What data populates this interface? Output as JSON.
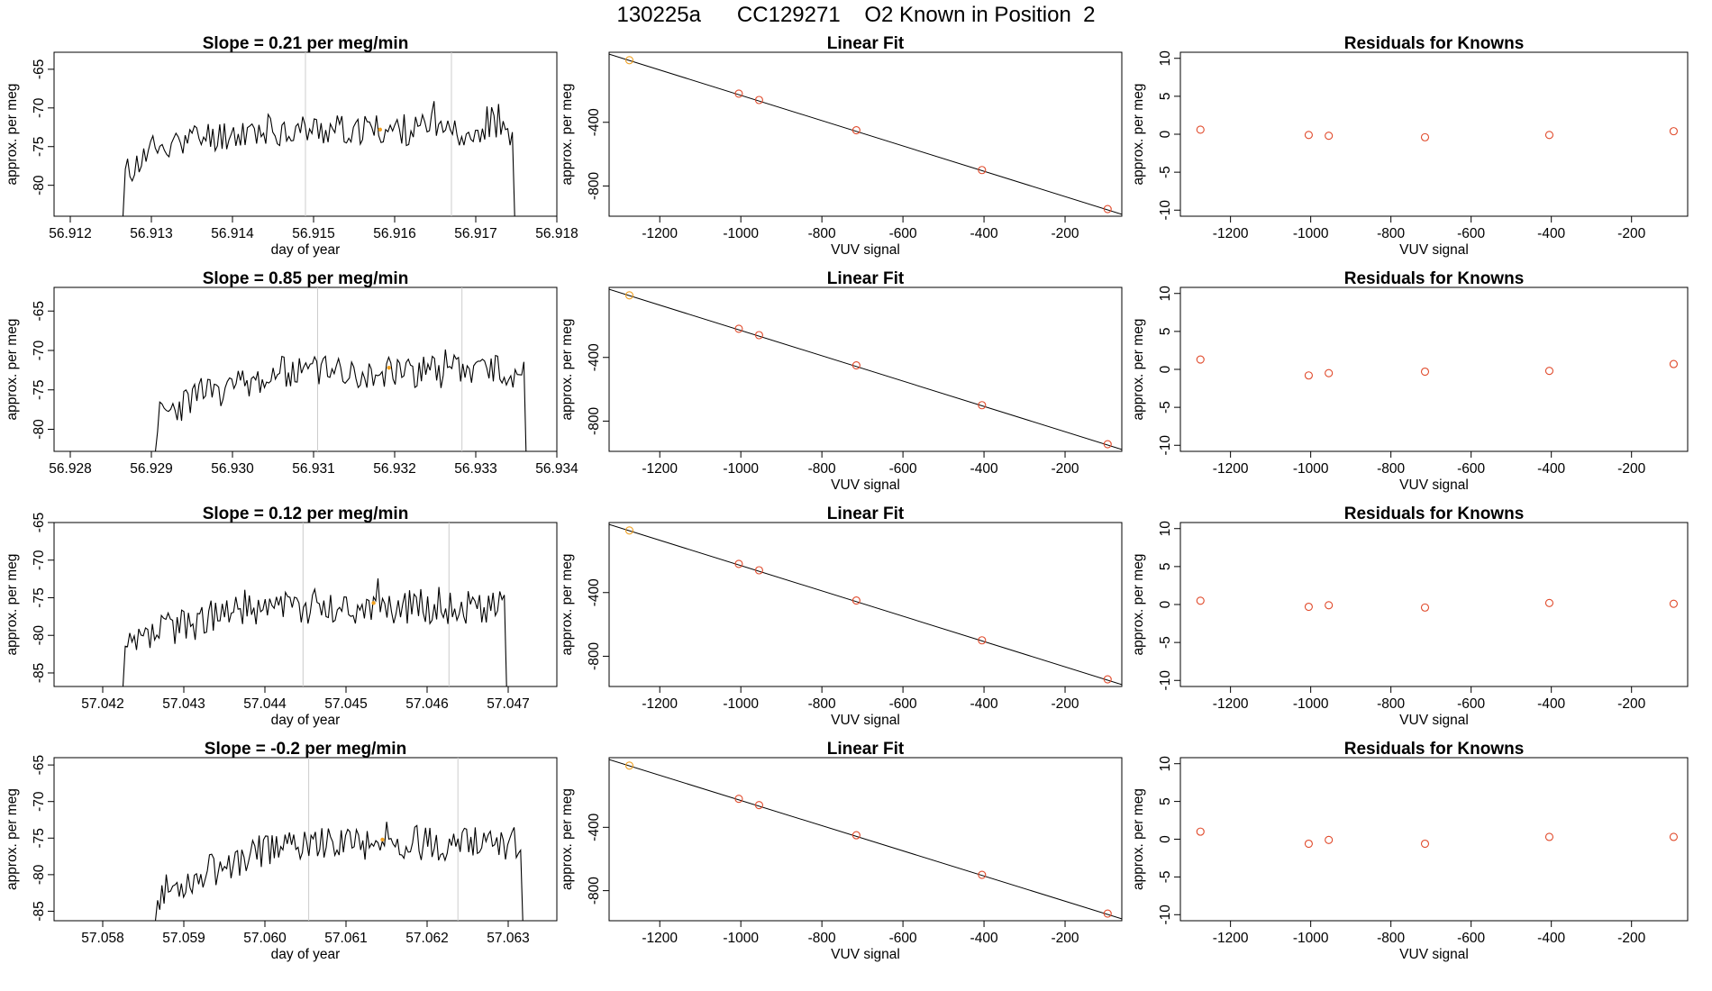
{
  "page_title": "130225a      CC129271    O2 Known in Position  2",
  "colors": {
    "line": "#000000",
    "grid": "#cccccc",
    "point_known": "#e0492a",
    "point_orange": "#f0a020",
    "frame": "#000000"
  },
  "chart_data": [
    {
      "type": "line",
      "title_prefix": "Slope = ",
      "title_value": " 0.21",
      "title_suffix": "  per meg/min",
      "xlabel": "day of year",
      "ylabel": "approx. per meg",
      "xlim": [
        56.9118,
        56.918
      ],
      "ylim": [
        -84,
        -62.8
      ],
      "xticks": [
        56.912,
        56.913,
        56.914,
        56.915,
        56.916,
        56.917,
        56.918
      ],
      "xtick_labels": [
        "56.912",
        "56.913",
        "56.914",
        "56.915",
        "56.916",
        "56.917",
        "56.918"
      ],
      "yticks": [
        -80,
        -75,
        -70,
        -65
      ],
      "ytick_labels": [
        "-80",
        "-75",
        "-70",
        "-65"
      ],
      "vlines": [
        56.9149,
        56.9167
      ],
      "series": {
        "x_start": 56.91265,
        "x_end": 56.91748,
        "start_value": -84,
        "mean": -72.8,
        "ramp_to": -74.5,
        "ramp_frac": 0.1,
        "amplitude": 2.1,
        "seed": 11
      },
      "highlight": {
        "x": 56.91582,
        "y": -72.8
      }
    },
    {
      "type": "line",
      "title_prefix": "Slope = ",
      "title_value": " 0.85",
      "title_suffix": "  per meg/min",
      "xlabel": "",
      "ylabel": "approx. per meg",
      "xlim": [
        56.9278,
        56.934
      ],
      "ylim": [
        -82.8,
        -62
      ],
      "xticks": [
        56.928,
        56.929,
        56.93,
        56.931,
        56.932,
        56.933,
        56.934
      ],
      "xtick_labels": [
        "56.928",
        "56.929",
        "56.930",
        "56.931",
        "56.932",
        "56.933",
        "56.934"
      ],
      "yticks": [
        -80,
        -75,
        -70,
        -65
      ],
      "ytick_labels": [
        "-80",
        "-75",
        "-70",
        "-65"
      ],
      "vlines": [
        56.93105,
        56.93283
      ],
      "series": {
        "x_start": 56.92905,
        "x_end": 56.93362,
        "start_value": -82.8,
        "mean": -72.6,
        "ramp_to": -75.5,
        "ramp_frac": 0.12,
        "amplitude": 2.2,
        "seed": 23
      },
      "highlight": {
        "x": 56.93193,
        "y": -72.2
      }
    },
    {
      "type": "line",
      "title_prefix": "Slope = ",
      "title_value": " 0.12",
      "title_suffix": "  per meg/min",
      "xlabel": "day of year",
      "ylabel": "approx. per meg",
      "xlim": [
        57.0414,
        57.0476
      ],
      "ylim": [
        -86.8,
        -65
      ],
      "xticks": [
        57.042,
        57.043,
        57.044,
        57.045,
        57.046,
        57.047
      ],
      "xtick_labels": [
        "57.042",
        "57.043",
        "57.044",
        "57.045",
        "57.046",
        "57.047"
      ],
      "yticks": [
        -85,
        -80,
        -75,
        -70,
        -65
      ],
      "ytick_labels": [
        "-85",
        "-80",
        "-75",
        "-70",
        "-65"
      ],
      "vlines": [
        57.04447,
        57.04627
      ],
      "series": {
        "x_start": 57.04225,
        "x_end": 57.04698,
        "start_value": -86.8,
        "mean": -76.2,
        "ramp_to": -79,
        "ramp_frac": 0.12,
        "amplitude": 2.4,
        "seed": 37
      },
      "highlight": {
        "x": 57.04534,
        "y": -75.7
      }
    },
    {
      "type": "line",
      "title_prefix": "Slope = ",
      "title_value": " -0.2",
      "title_suffix": "  per meg/min",
      "xlabel": "day of year",
      "ylabel": "approx. per meg",
      "xlim": [
        57.0574,
        57.0636
      ],
      "ylim": [
        -86.3,
        -64
      ],
      "xticks": [
        57.058,
        57.059,
        57.06,
        57.061,
        57.062,
        57.063
      ],
      "xtick_labels": [
        "57.058",
        "57.059",
        "57.060",
        "57.061",
        "57.062",
        "57.063"
      ],
      "yticks": [
        -85,
        -80,
        -75,
        -70,
        -65
      ],
      "ytick_labels": [
        "-85",
        "-80",
        "-75",
        "-70",
        "-65"
      ],
      "vlines": [
        57.06054,
        57.06238
      ],
      "series": {
        "x_start": 57.05865,
        "x_end": 57.06318,
        "start_value": -86.3,
        "mean": -75.8,
        "ramp_to": -80,
        "ramp_frac": 0.12,
        "amplitude": 2.3,
        "seed": 53
      },
      "highlight": {
        "x": 57.06145,
        "y": -75.2
      }
    },
    {
      "type": "scatter",
      "title": "Linear Fit",
      "xlabel": "VUV signal",
      "ylabel": "approx. per meg",
      "xlim": [
        -1325,
        -60
      ],
      "ylim": [
        -990,
        40
      ],
      "xticks": [
        -1200,
        -1000,
        -800,
        -600,
        -400,
        -200
      ],
      "xtick_labels": [
        "-1200",
        "-1000",
        "-800",
        "-600",
        "-400",
        "-200"
      ],
      "yticks": [
        -800,
        -400
      ],
      "ytick_labels": [
        "-800",
        "-400"
      ],
      "fit_line": {
        "x": [
          -1325,
          -60
        ],
        "y": [
          28,
          -978
        ]
      },
      "points": {
        "x": [
          -1275,
          -1005,
          -955,
          -715,
          -405,
          -95
        ],
        "y": [
          -10,
          -220,
          -260,
          -450,
          -700,
          -945
        ]
      }
    },
    {
      "type": "scatter",
      "title": "Linear Fit",
      "xlabel": "VUV signal",
      "ylabel": "approx. per meg",
      "xlim": [
        -1325,
        -60
      ],
      "ylim": [
        -990,
        40
      ],
      "xticks": [
        -1200,
        -1000,
        -800,
        -600,
        -400,
        -200
      ],
      "xtick_labels": [
        "-1200",
        "-1000",
        "-800",
        "-600",
        "-400",
        "-200"
      ],
      "yticks": [
        -800,
        -400
      ],
      "ytick_labels": [
        "-800",
        "-400"
      ],
      "fit_line": {
        "x": [
          -1325,
          -60
        ],
        "y": [
          28,
          -978
        ]
      },
      "points": {
        "x": [
          -1275,
          -1005,
          -955,
          -715,
          -405,
          -95
        ],
        "y": [
          -10,
          -220,
          -260,
          -450,
          -700,
          -945
        ]
      }
    },
    {
      "type": "scatter",
      "title": "Linear Fit",
      "xlabel": "VUV signal",
      "ylabel": "approx. per meg",
      "xlim": [
        -1325,
        -60
      ],
      "ylim": [
        -990,
        40
      ],
      "xticks": [
        -1200,
        -1000,
        -800,
        -600,
        -400,
        -200
      ],
      "xtick_labels": [
        "-1200",
        "-1000",
        "-800",
        "-600",
        "-400",
        "-200"
      ],
      "yticks": [
        -800,
        -400
      ],
      "ytick_labels": [
        "-800",
        "-400"
      ],
      "fit_line": {
        "x": [
          -1325,
          -60
        ],
        "y": [
          28,
          -978
        ]
      },
      "points": {
        "x": [
          -1275,
          -1005,
          -955,
          -715,
          -405,
          -95
        ],
        "y": [
          -10,
          -220,
          -260,
          -450,
          -700,
          -945
        ]
      }
    },
    {
      "type": "scatter",
      "title": "Linear Fit",
      "xlabel": "VUV signal",
      "ylabel": "approx. per meg",
      "xlim": [
        -1325,
        -60
      ],
      "ylim": [
        -990,
        40
      ],
      "xticks": [
        -1200,
        -1000,
        -800,
        -600,
        -400,
        -200
      ],
      "xtick_labels": [
        "-1200",
        "-1000",
        "-800",
        "-600",
        "-400",
        "-200"
      ],
      "yticks": [
        -800,
        -400
      ],
      "ytick_labels": [
        "-800",
        "-400"
      ],
      "fit_line": {
        "x": [
          -1325,
          -60
        ],
        "y": [
          28,
          -978
        ]
      },
      "points": {
        "x": [
          -1275,
          -1005,
          -955,
          -715,
          -405,
          -95
        ],
        "y": [
          -10,
          -220,
          -260,
          -450,
          -700,
          -945
        ]
      }
    },
    {
      "type": "scatter",
      "title": "Residuals for Knowns",
      "xlabel": "VUV signal",
      "ylabel": "approx. per meg",
      "xlim": [
        -1325,
        -60
      ],
      "ylim": [
        -10.8,
        10.8
      ],
      "xticks": [
        -1200,
        -1000,
        -800,
        -600,
        -400,
        -200
      ],
      "xtick_labels": [
        "-1200",
        "-1000",
        "-800",
        "-600",
        "-400",
        "-200"
      ],
      "yticks": [
        -10,
        -5,
        0,
        5,
        10
      ],
      "ytick_labels": [
        "-10",
        "-5",
        "0",
        "5",
        "10"
      ],
      "points": {
        "x": [
          -1275,
          -1005,
          -955,
          -715,
          -405,
          -95
        ],
        "y": [
          0.6,
          -0.1,
          -0.2,
          -0.4,
          -0.1,
          0.4
        ]
      }
    },
    {
      "type": "scatter",
      "title": "Residuals for Knowns",
      "xlabel": "VUV signal",
      "ylabel": "approx. per meg",
      "xlim": [
        -1325,
        -60
      ],
      "ylim": [
        -10.8,
        10.8
      ],
      "xticks": [
        -1200,
        -1000,
        -800,
        -600,
        -400,
        -200
      ],
      "xtick_labels": [
        "-1200",
        "-1000",
        "-800",
        "-600",
        "-400",
        "-200"
      ],
      "yticks": [
        -10,
        -5,
        0,
        5,
        10
      ],
      "ytick_labels": [
        "-10",
        "-5",
        "0",
        "5",
        "10"
      ],
      "points": {
        "x": [
          -1275,
          -1005,
          -955,
          -715,
          -405,
          -95
        ],
        "y": [
          1.3,
          -0.8,
          -0.5,
          -0.3,
          -0.2,
          0.7
        ]
      }
    },
    {
      "type": "scatter",
      "title": "Residuals for Knowns",
      "xlabel": "VUV signal",
      "ylabel": "approx. per meg",
      "xlim": [
        -1325,
        -60
      ],
      "ylim": [
        -10.8,
        10.8
      ],
      "xticks": [
        -1200,
        -1000,
        -800,
        -600,
        -400,
        -200
      ],
      "xtick_labels": [
        "-1200",
        "-1000",
        "-800",
        "-600",
        "-400",
        "-200"
      ],
      "yticks": [
        -10,
        -5,
        0,
        5,
        10
      ],
      "ytick_labels": [
        "-10",
        "-5",
        "0",
        "5",
        "10"
      ],
      "points": {
        "x": [
          -1275,
          -1005,
          -955,
          -715,
          -405,
          -95
        ],
        "y": [
          0.5,
          -0.3,
          -0.1,
          -0.4,
          0.2,
          0.1
        ]
      }
    },
    {
      "type": "scatter",
      "title": "Residuals for Knowns",
      "xlabel": "VUV signal",
      "ylabel": "approx. per meg",
      "xlim": [
        -1325,
        -60
      ],
      "ylim": [
        -10.8,
        10.8
      ],
      "xticks": [
        -1200,
        -1000,
        -800,
        -600,
        -400,
        -200
      ],
      "xtick_labels": [
        "-1200",
        "-1000",
        "-800",
        "-600",
        "-400",
        "-200"
      ],
      "yticks": [
        -10,
        -5,
        0,
        5,
        10
      ],
      "ytick_labels": [
        "-10",
        "-5",
        "0",
        "5",
        "10"
      ],
      "points": {
        "x": [
          -1275,
          -1005,
          -955,
          -715,
          -405,
          -95
        ],
        "y": [
          1.0,
          -0.6,
          -0.1,
          -0.6,
          0.3,
          0.3
        ]
      }
    }
  ]
}
